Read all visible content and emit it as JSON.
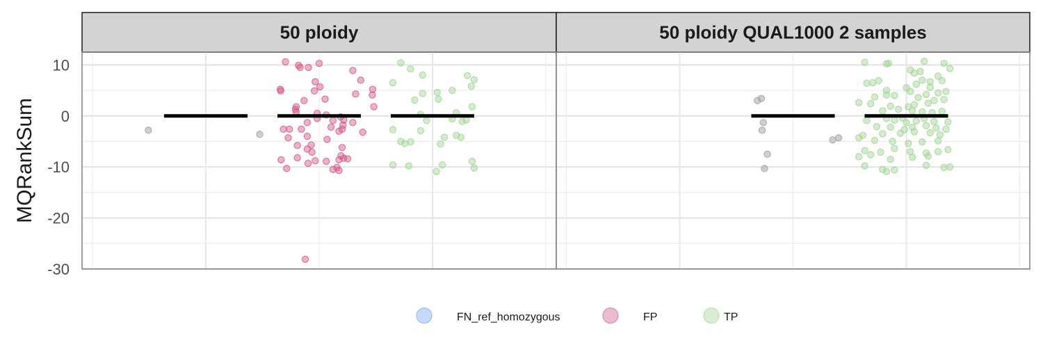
{
  "chart_data": {
    "type": "scatter",
    "ylabel": "MQRankSum",
    "ylim": [
      -30,
      12.5
    ],
    "yticks": [
      10,
      0,
      -10,
      -20,
      -30
    ],
    "grid": true,
    "legend_position": "bottom",
    "colors": {
      "FN_ref_homozygous": "#6fa0ee",
      "FP": "#d2568a",
      "TP": "#9fd393",
      "other": "#a7a7a7",
      "median": "#000000",
      "strip": "#d3d3d3"
    },
    "legend": [
      {
        "name": "FN_ref_homozygous",
        "color": "#6fa0ee"
      },
      {
        "name": "FP",
        "color": "#d2568a"
      },
      {
        "name": "TP",
        "color": "#9fd393"
      }
    ],
    "panels": [
      {
        "title": "50 ploidy",
        "groups": [
          {
            "category": "other",
            "median": 0,
            "points": [
              [
                -1.45,
                -2.8
              ],
              [
                1.36,
                -3.6
              ]
            ]
          },
          {
            "category": "FP",
            "median": 0,
            "points": [
              [
                -0.85,
                10.6
              ],
              [
                -0.52,
                9.9
              ],
              [
                -0.48,
                9.5
              ],
              [
                0.0,
                10.3
              ],
              [
                -0.38,
                3.0
              ],
              [
                -0.98,
                5.2
              ],
              [
                -0.97,
                4.9
              ],
              [
                -0.27,
                9.5
              ],
              [
                -0.1,
                6.7
              ],
              [
                0.02,
                5.7
              ],
              [
                -0.12,
                4.9
              ],
              [
                0.15,
                3.3
              ],
              [
                0.85,
                8.9
              ],
              [
                1.05,
                7.0
              ],
              [
                1.35,
                5.2
              ],
              [
                1.34,
                4.1
              ],
              [
                0.92,
                4.3
              ],
              [
                -0.58,
                1.8
              ],
              [
                -0.6,
                1.3
              ],
              [
                -0.58,
                0.8
              ],
              [
                -0.05,
                0.5
              ],
              [
                0.18,
                0.2
              ],
              [
                0.54,
                -0.2
              ],
              [
                -0.05,
                -0.5
              ],
              [
                0.35,
                -0.9
              ],
              [
                0.62,
                -0.8
              ],
              [
                0.85,
                -1.3
              ],
              [
                1.38,
                1.8
              ],
              [
                0.6,
                -1.8
              ],
              [
                -0.3,
                -1.3
              ],
              [
                -0.9,
                -2.6
              ],
              [
                -0.75,
                -2.6
              ],
              [
                -0.45,
                -2.6
              ],
              [
                0.3,
                -2.2
              ],
              [
                0.5,
                -3.0
              ],
              [
                0.58,
                -2.6
              ],
              [
                1.1,
                -3.2
              ],
              [
                -0.78,
                -4.3
              ],
              [
                -0.3,
                -4.0
              ],
              [
                -0.55,
                -5.8
              ],
              [
                -0.2,
                -5.7
              ],
              [
                -0.3,
                -6.5
              ],
              [
                -0.18,
                -7.1
              ],
              [
                0.2,
                -4.6
              ],
              [
                0.58,
                -6.2
              ],
              [
                0.55,
                -7.8
              ],
              [
                0.62,
                -8.3
              ],
              [
                0.5,
                -8.6
              ],
              [
                0.72,
                -8.4
              ],
              [
                -0.96,
                -8.6
              ],
              [
                -0.55,
                -8.2
              ],
              [
                -0.1,
                -8.8
              ],
              [
                -0.28,
                -9.3
              ],
              [
                0.18,
                -8.9
              ],
              [
                -0.82,
                -10.3
              ],
              [
                0.45,
                -10.1
              ],
              [
                0.35,
                -10.5
              ],
              [
                0.5,
                -10.7
              ],
              [
                -0.35,
                -28.1
              ]
            ]
          },
          {
            "category": "TP",
            "median": 0,
            "points": [
              [
                -0.8,
                10.4
              ],
              [
                -0.55,
                9.2
              ],
              [
                -0.25,
                8.0
              ],
              [
                0.88,
                7.9
              ],
              [
                -1.0,
                6.5
              ],
              [
                0.5,
                5.0
              ],
              [
                1.05,
                7.1
              ],
              [
                0.98,
                5.8
              ],
              [
                -0.45,
                3.1
              ],
              [
                -0.25,
                4.4
              ],
              [
                0.15,
                3.3
              ],
              [
                0.12,
                4.6
              ],
              [
                1.0,
                1.8
              ],
              [
                -0.3,
                0.3
              ],
              [
                0.6,
                0.6
              ],
              [
                0.5,
                -0.6
              ],
              [
                -0.15,
                -0.9
              ],
              [
                0.85,
                -0.8
              ],
              [
                0.75,
                -1.1
              ],
              [
                -1.0,
                -2.7
              ],
              [
                -0.3,
                -2.9
              ],
              [
                0.3,
                -4.2
              ],
              [
                0.6,
                -3.8
              ],
              [
                -0.55,
                -5.1
              ],
              [
                -0.8,
                -5.0
              ],
              [
                -0.7,
                -5.4
              ],
              [
                0.2,
                -5.5
              ],
              [
                0.72,
                -4.2
              ],
              [
                1.0,
                -8.9
              ],
              [
                1.05,
                -10.2
              ],
              [
                -1.0,
                -9.6
              ],
              [
                -0.6,
                -9.8
              ],
              [
                0.1,
                -10.9
              ],
              [
                0.25,
                -9.6
              ]
            ]
          }
        ]
      },
      {
        "title": "50 ploidy QUAL1000 2 samples",
        "groups": [
          {
            "category": "other",
            "median": 0,
            "points": [
              [
                -0.9,
                3.0
              ],
              [
                -0.8,
                3.4
              ],
              [
                -0.75,
                -1.3
              ],
              [
                -0.78,
                -2.8
              ],
              [
                -0.65,
                -7.5
              ],
              [
                -0.72,
                -10.3
              ],
              [
                1.0,
                -4.7
              ],
              [
                1.15,
                -4.3
              ]
            ]
          },
          {
            "category": "TP",
            "median": 0,
            "points": [
              [
                -1.05,
                10.5
              ],
              [
                -0.5,
                10.2
              ],
              [
                -0.45,
                10.3
              ],
              [
                0.45,
                10.7
              ],
              [
                0.95,
                10.3
              ],
              [
                1.1,
                9.3
              ],
              [
                0.1,
                9.0
              ],
              [
                0.35,
                8.7
              ],
              [
                0.2,
                8.4
              ],
              [
                0.8,
                7.8
              ],
              [
                0.9,
                6.9
              ],
              [
                -1.0,
                6.4
              ],
              [
                -0.85,
                6.5
              ],
              [
                -0.7,
                6.9
              ],
              [
                0.4,
                7.0
              ],
              [
                0.6,
                6.7
              ],
              [
                0.25,
                6.2
              ],
              [
                -0.5,
                5.0
              ],
              [
                0.0,
                5.5
              ],
              [
                0.6,
                5.6
              ],
              [
                0.1,
                4.8
              ],
              [
                -0.8,
                3.7
              ],
              [
                -0.5,
                4.1
              ],
              [
                -0.3,
                4.0
              ],
              [
                0.3,
                3.6
              ],
              [
                0.5,
                4.2
              ],
              [
                0.8,
                4.5
              ],
              [
                1.0,
                4.8
              ],
              [
                -1.2,
                2.6
              ],
              [
                -0.9,
                2.4
              ],
              [
                -0.4,
                1.9
              ],
              [
                0.05,
                1.8
              ],
              [
                0.2,
                2.2
              ],
              [
                0.55,
                2.5
              ],
              [
                0.7,
                3.0
              ],
              [
                0.95,
                3.2
              ],
              [
                -0.6,
                1.0
              ],
              [
                -0.2,
                1.3
              ],
              [
                0.15,
                1.0
              ],
              [
                0.4,
                0.8
              ],
              [
                0.65,
                0.6
              ],
              [
                0.9,
                0.9
              ],
              [
                -1.0,
                -0.9
              ],
              [
                -0.5,
                -0.5
              ],
              [
                -0.3,
                -0.8
              ],
              [
                -0.1,
                -0.4
              ],
              [
                0.0,
                -1.3
              ],
              [
                0.25,
                -1.0
              ],
              [
                0.45,
                -0.5
              ],
              [
                0.7,
                -1.1
              ],
              [
                1.05,
                -1.2
              ],
              [
                -0.75,
                -2.1
              ],
              [
                -0.4,
                -2.2
              ],
              [
                -0.05,
                -2.7
              ],
              [
                0.15,
                -2.2
              ],
              [
                0.5,
                -1.9
              ],
              [
                0.75,
                -2.4
              ],
              [
                1.0,
                -2.6
              ],
              [
                -1.1,
                -3.8
              ],
              [
                -0.6,
                -3.5
              ],
              [
                -0.15,
                -3.4
              ],
              [
                0.2,
                -3.1
              ],
              [
                0.6,
                -3.3
              ],
              [
                0.85,
                -3.7
              ],
              [
                -1.2,
                -4.3
              ],
              [
                -0.8,
                -4.8
              ],
              [
                -0.35,
                -5.0
              ],
              [
                0.05,
                -5.4
              ],
              [
                0.4,
                -5.1
              ],
              [
                0.8,
                -4.9
              ],
              [
                -1.05,
                -6.8
              ],
              [
                -0.65,
                -7.1
              ],
              [
                -0.3,
                -6.4
              ],
              [
                0.1,
                -7.0
              ],
              [
                0.5,
                -7.3
              ],
              [
                0.8,
                -7.0
              ],
              [
                1.05,
                -6.6
              ],
              [
                -1.2,
                -8.0
              ],
              [
                -0.9,
                -7.6
              ],
              [
                -0.4,
                -8.5
              ],
              [
                0.15,
                -8.1
              ],
              [
                0.55,
                -7.9
              ],
              [
                -1.05,
                -9.8
              ],
              [
                -0.6,
                -10.5
              ],
              [
                -0.5,
                -10.9
              ],
              [
                -0.3,
                -10.6
              ],
              [
                0.5,
                -9.7
              ],
              [
                0.95,
                -10.1
              ],
              [
                1.1,
                -10.0
              ]
            ]
          }
        ]
      }
    ]
  }
}
